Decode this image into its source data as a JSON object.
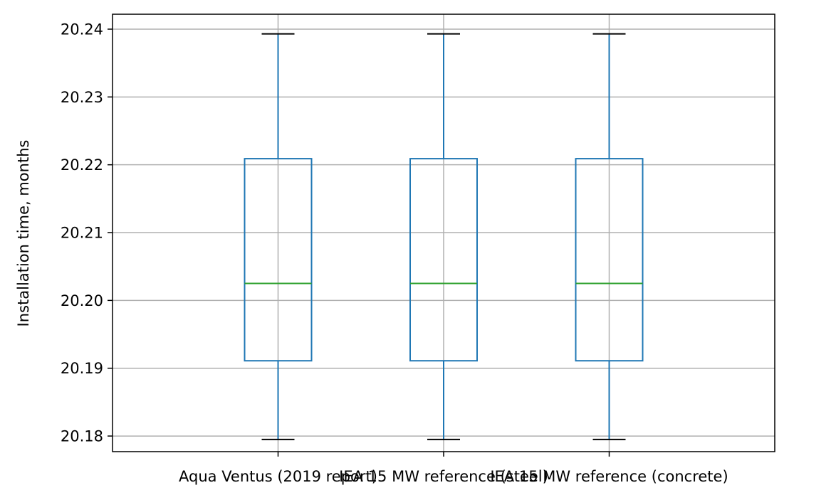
{
  "chart_data": {
    "type": "box",
    "ylabel": "Installation time, months",
    "ylim": [
      20.1777,
      20.2422
    ],
    "yticks": [
      20.18,
      20.19,
      20.2,
      20.21,
      20.22,
      20.23,
      20.24
    ],
    "ytick_labels": [
      "20.18",
      "20.19",
      "20.20",
      "20.21",
      "20.22",
      "20.23",
      "20.24"
    ],
    "grid": true,
    "categories": [
      "Aqua Ventus (2019 report)",
      "IEA 15 MW reference (steel)",
      "IEA 15 MW reference (concrete)"
    ],
    "boxes": [
      {
        "whisker_low": 20.1795,
        "q1": 20.1911,
        "median": 20.2025,
        "q3": 20.2209,
        "whisker_high": 20.2393
      },
      {
        "whisker_low": 20.1795,
        "q1": 20.1911,
        "median": 20.2025,
        "q3": 20.2209,
        "whisker_high": 20.2393
      },
      {
        "whisker_low": 20.1795,
        "q1": 20.1911,
        "median": 20.2025,
        "q3": 20.2209,
        "whisker_high": 20.2393
      }
    ],
    "colors": {
      "box": "#1f77b4",
      "median": "#2ca02c",
      "cap": "#000000",
      "grid": "#b0b0b0",
      "frame": "#000000"
    }
  }
}
